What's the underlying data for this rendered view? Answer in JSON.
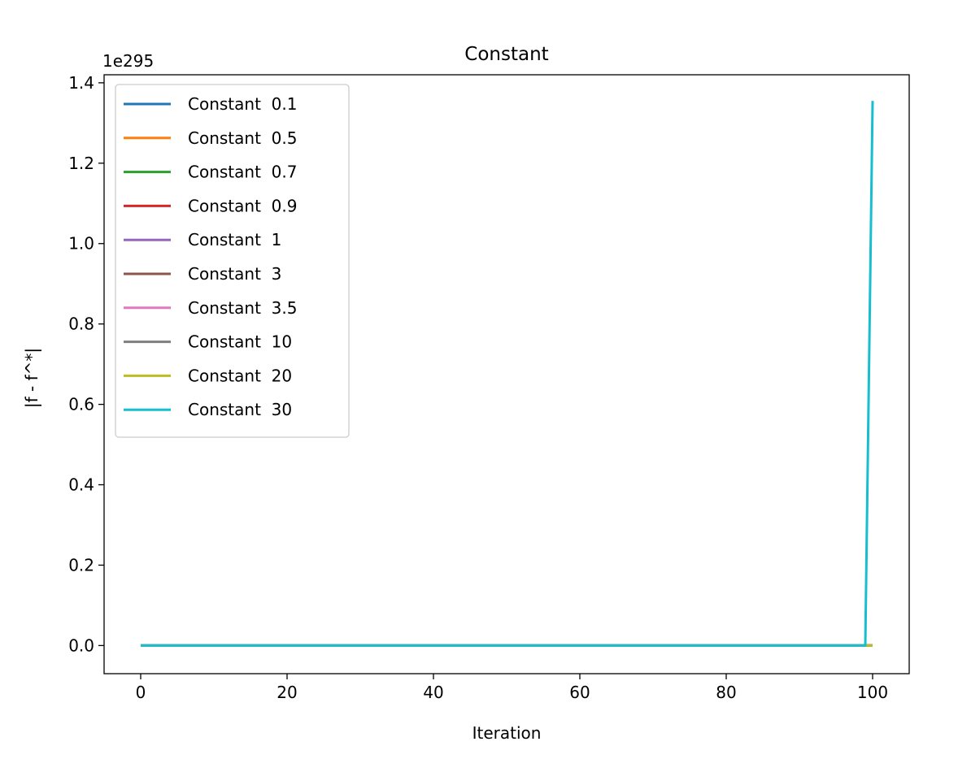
{
  "chart_data": {
    "type": "line",
    "title": "Constant",
    "xlabel": "Iteration",
    "ylabel": "|f - f^*|",
    "y_offset_label": "1e295",
    "y_multiplier": 1e+295,
    "xlim": [
      -5,
      105
    ],
    "ylim": [
      -0.07,
      1.42
    ],
    "xticks": [
      0,
      20,
      40,
      60,
      80,
      100
    ],
    "xtick_labels": [
      "0",
      "20",
      "40",
      "60",
      "80",
      "100"
    ],
    "yticks": [
      0.0,
      0.2,
      0.4,
      0.6,
      0.8,
      1.0,
      1.2,
      1.4
    ],
    "ytick_labels": [
      "0.0",
      "0.2",
      "0.4",
      "0.6",
      "0.8",
      "1.0",
      "1.2",
      "1.4"
    ],
    "grid": false,
    "legend_position": "top-left",
    "series": [
      {
        "name": "Constant  0.1",
        "color": "#1f77b4",
        "x": [
          0,
          100
        ],
        "y": [
          0,
          0
        ]
      },
      {
        "name": "Constant  0.5",
        "color": "#ff7f0e",
        "x": [
          0,
          100
        ],
        "y": [
          0,
          0
        ]
      },
      {
        "name": "Constant  0.7",
        "color": "#2ca02c",
        "x": [
          0,
          100
        ],
        "y": [
          0,
          0
        ]
      },
      {
        "name": "Constant  0.9",
        "color": "#d62728",
        "x": [
          0,
          100
        ],
        "y": [
          0,
          0
        ]
      },
      {
        "name": "Constant  1",
        "color": "#9467bd",
        "x": [
          0,
          100
        ],
        "y": [
          0,
          0
        ]
      },
      {
        "name": "Constant  3",
        "color": "#8c564b",
        "x": [
          0,
          100
        ],
        "y": [
          0,
          0
        ]
      },
      {
        "name": "Constant  3.5",
        "color": "#e377c2",
        "x": [
          0,
          100
        ],
        "y": [
          0,
          0
        ]
      },
      {
        "name": "Constant  10",
        "color": "#7f7f7f",
        "x": [
          0,
          100
        ],
        "y": [
          0,
          0
        ]
      },
      {
        "name": "Constant  20",
        "color": "#bcbd22",
        "x": [
          0,
          100
        ],
        "y": [
          0,
          0
        ]
      },
      {
        "name": "Constant  30",
        "color": "#17becf",
        "x": [
          0,
          99,
          100
        ],
        "y": [
          0,
          0.0,
          1.355
        ]
      }
    ]
  }
}
